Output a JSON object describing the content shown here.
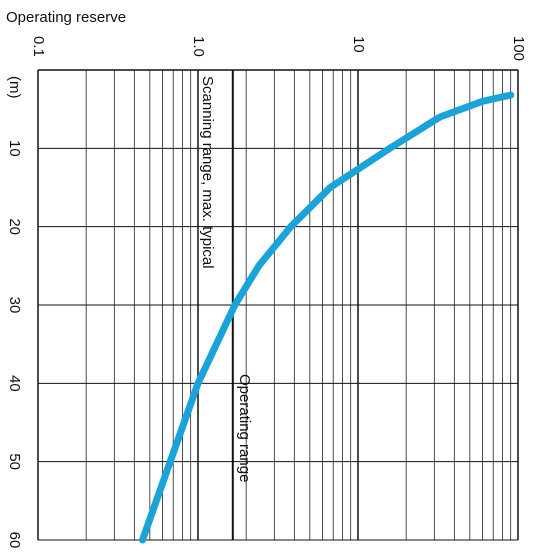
{
  "chart_data": {
    "type": "line",
    "xlabel": "Operating reserve",
    "ylabel": "(m)",
    "xlog": true,
    "grid": true,
    "minor_grid": true,
    "xlim": [
      0.1,
      100
    ],
    "xticks": [
      0.1,
      {
        "value": 1,
        "label": "1.0"
      },
      10,
      100
    ],
    "ylim": [
      0,
      60
    ],
    "yticks": [
      10,
      20,
      30,
      40,
      50,
      60
    ],
    "series": [
      {
        "color": "#1aa3d9",
        "x": [
          90,
          60,
          32.5,
          15.8,
          6.7,
          3.8,
          2.4,
          1.7,
          1.0,
          0.67,
          0.45
        ],
        "values": [
          3.2,
          4,
          6,
          10,
          15,
          20,
          25,
          30,
          40,
          50,
          60
        ]
      }
    ],
    "reference_line": {
      "value": 1.65,
      "label": "Operating range"
    },
    "annotation": "Scanning range, max. typical"
  }
}
